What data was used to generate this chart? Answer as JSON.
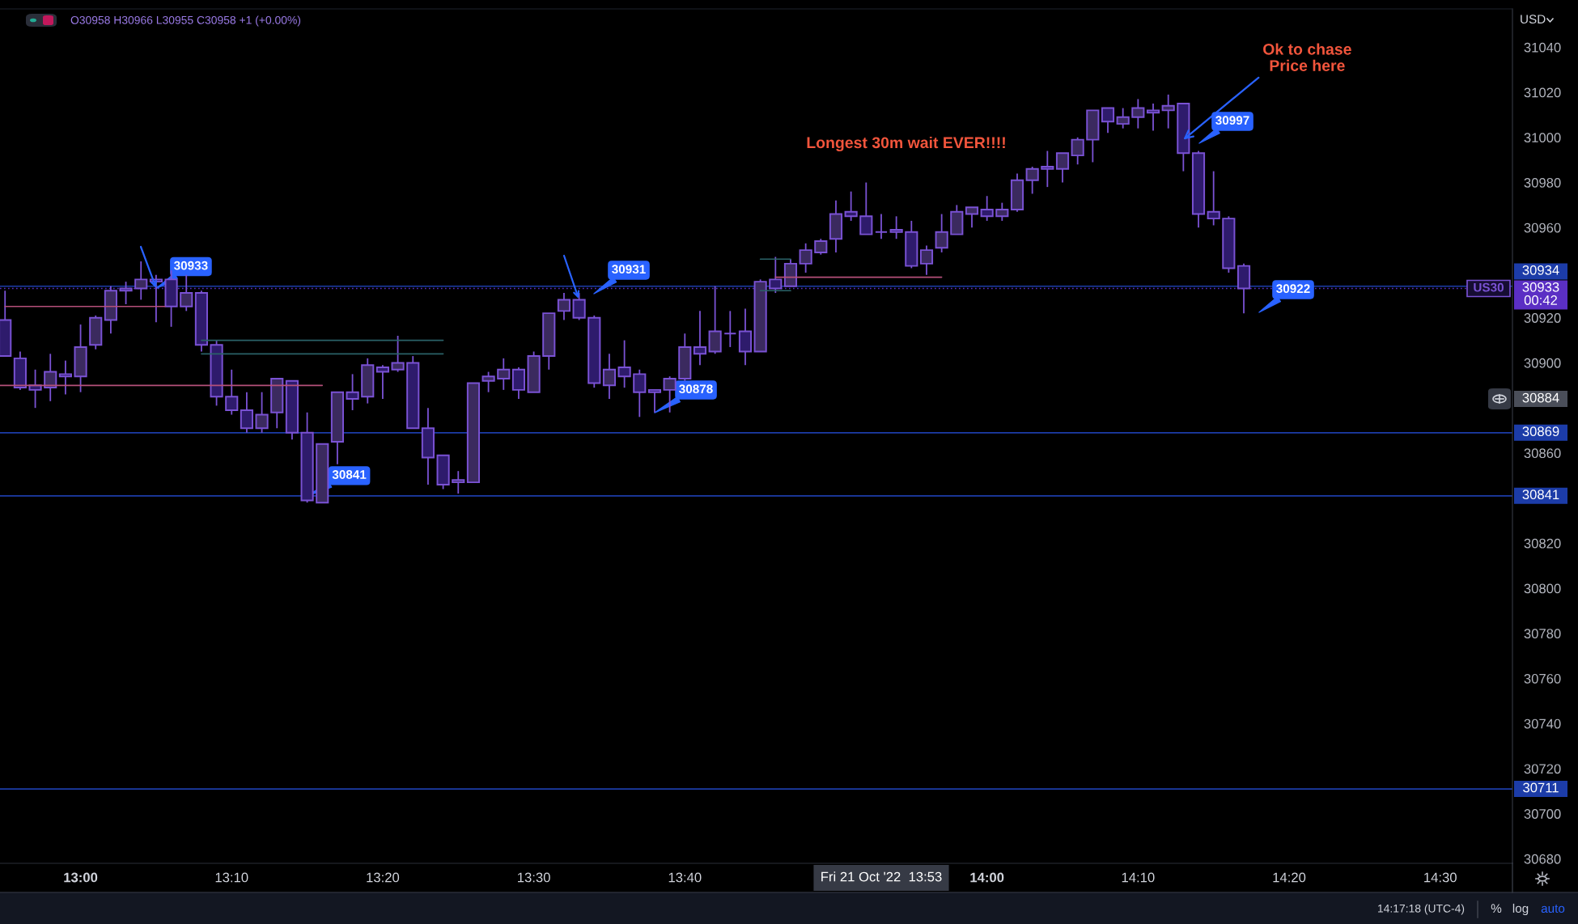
{
  "chart_data": {
    "type": "candlestick",
    "series": [
      {
        "name": "US30",
        "color": "#7a52d4",
        "x": [
          "2022-10-21T12:55",
          "2022-10-21T12:56",
          "2022-10-21T12:57",
          "2022-10-21T12:58",
          "2022-10-21T12:59",
          "2022-10-21T13:00",
          "2022-10-21T13:01",
          "2022-10-21T13:02",
          "2022-10-21T13:03",
          "2022-10-21T13:04",
          "2022-10-21T13:05",
          "2022-10-21T13:06",
          "2022-10-21T13:07",
          "2022-10-21T13:08",
          "2022-10-21T13:09",
          "2022-10-21T13:10",
          "2022-10-21T13:11",
          "2022-10-21T13:12",
          "2022-10-21T13:13",
          "2022-10-21T13:14",
          "2022-10-21T13:15",
          "2022-10-21T13:16",
          "2022-10-21T13:17",
          "2022-10-21T13:18",
          "2022-10-21T13:19",
          "2022-10-21T13:20",
          "2022-10-21T13:21",
          "2022-10-21T13:22",
          "2022-10-21T13:23",
          "2022-10-21T13:24",
          "2022-10-21T13:25",
          "2022-10-21T13:26",
          "2022-10-21T13:27",
          "2022-10-21T13:28",
          "2022-10-21T13:29",
          "2022-10-21T13:30",
          "2022-10-21T13:31",
          "2022-10-21T13:32",
          "2022-10-21T13:33",
          "2022-10-21T13:34",
          "2022-10-21T13:35",
          "2022-10-21T13:36",
          "2022-10-21T13:37",
          "2022-10-21T13:38",
          "2022-10-21T13:39",
          "2022-10-21T13:40",
          "2022-10-21T13:41",
          "2022-10-21T13:42",
          "2022-10-21T13:43",
          "2022-10-21T13:44",
          "2022-10-21T13:45",
          "2022-10-21T13:46",
          "2022-10-21T13:47",
          "2022-10-21T13:48",
          "2022-10-21T13:49",
          "2022-10-21T13:50",
          "2022-10-21T13:51",
          "2022-10-21T13:52",
          "2022-10-21T13:53",
          "2022-10-21T13:54",
          "2022-10-21T13:55",
          "2022-10-21T13:56",
          "2022-10-21T13:57",
          "2022-10-21T13:58",
          "2022-10-21T13:59",
          "2022-10-21T14:00",
          "2022-10-21T14:01",
          "2022-10-21T14:02",
          "2022-10-21T14:03",
          "2022-10-21T14:04",
          "2022-10-21T14:05",
          "2022-10-21T14:06",
          "2022-10-21T14:07",
          "2022-10-21T14:08",
          "2022-10-21T14:09",
          "2022-10-21T14:10",
          "2022-10-21T14:11",
          "2022-10-21T14:12",
          "2022-10-21T14:13",
          "2022-10-21T14:14",
          "2022-10-21T14:15",
          "2022-10-21T14:16",
          "2022-10-21T14:17"
        ],
        "ohlc": [
          [
            30919,
            30932,
            30903,
            30903
          ],
          [
            30902,
            30905,
            30888,
            30889
          ],
          [
            30890,
            30897,
            30880,
            30888
          ],
          [
            30889,
            30904,
            30883,
            30896
          ],
          [
            30895,
            30901,
            30886,
            30894
          ],
          [
            30894,
            30917,
            30887,
            30907
          ],
          [
            30908,
            30921,
            30906,
            30920
          ],
          [
            30919,
            30934,
            30913,
            30932
          ],
          [
            30933,
            30936,
            30926,
            30932
          ],
          [
            30933,
            30945,
            30928,
            30937
          ],
          [
            30937,
            30939,
            30918,
            30936
          ],
          [
            30937,
            30941,
            30916,
            30925
          ],
          [
            30925,
            30939,
            30923,
            30931
          ],
          [
            30931,
            30932,
            30905,
            30908
          ],
          [
            30908,
            30910,
            30881,
            30885
          ],
          [
            30885,
            30897,
            30877,
            30879
          ],
          [
            30879,
            30887,
            30869,
            30871
          ],
          [
            30871,
            30887,
            30869,
            30877
          ],
          [
            30878,
            30893,
            30871,
            30893
          ],
          [
            30892,
            30892,
            30866,
            30869
          ],
          [
            30869,
            30878,
            30838,
            30839
          ],
          [
            30838,
            30864,
            30838,
            30864
          ],
          [
            30865,
            30887,
            30855,
            30887
          ],
          [
            30887,
            30895,
            30879,
            30884
          ],
          [
            30885,
            30902,
            30882,
            30899
          ],
          [
            30898,
            30899,
            30884,
            30896
          ],
          [
            30897,
            30912,
            30896,
            30900
          ],
          [
            30900,
            30903,
            30871,
            30871
          ],
          [
            30871,
            30880,
            30846,
            30858
          ],
          [
            30859,
            30859,
            30844,
            30846
          ],
          [
            30847,
            30852,
            30842,
            30848
          ],
          [
            30847,
            30891,
            30847,
            30891
          ],
          [
            30892,
            30896,
            30887,
            30894
          ],
          [
            30893,
            30902,
            30888,
            30897
          ],
          [
            30897,
            30898,
            30884,
            30888
          ],
          [
            30887,
            30905,
            30887,
            30903
          ],
          [
            30903,
            30922,
            30897,
            30922
          ],
          [
            30923,
            30931,
            30919,
            30928
          ],
          [
            30928,
            30931,
            30919,
            30920
          ],
          [
            30920,
            30921,
            30889,
            30891
          ],
          [
            30890,
            30904,
            30884,
            30897
          ],
          [
            30898,
            30910,
            30889,
            30894
          ],
          [
            30895,
            30897,
            30876,
            30887
          ],
          [
            30888,
            30888,
            30878,
            30887
          ],
          [
            30888,
            30894,
            30878,
            30893
          ],
          [
            30893,
            30913,
            30892,
            30907
          ],
          [
            30907,
            30923,
            30899,
            30904
          ],
          [
            30905,
            30934,
            30904,
            30914
          ],
          [
            30913,
            30923,
            30907,
            30913
          ],
          [
            30914,
            30924,
            30899,
            30905
          ],
          [
            30905,
            30937,
            30905,
            30936
          ],
          [
            30937,
            30947,
            30931,
            30933
          ],
          [
            30934,
            30946,
            30934,
            30944
          ],
          [
            30944,
            30953,
            30940,
            30950
          ],
          [
            30949,
            30955,
            30948,
            30954
          ],
          [
            30955,
            30972,
            30949,
            30966
          ],
          [
            30967,
            30976,
            30963,
            30965
          ],
          [
            30965,
            30980,
            30957,
            30957
          ],
          [
            30958,
            30966,
            30955,
            30958
          ],
          [
            30959,
            30965,
            30955,
            30958
          ],
          [
            30958,
            30963,
            30942,
            30943
          ],
          [
            30944,
            30952,
            30939,
            30950
          ],
          [
            30951,
            30966,
            30949,
            30958
          ],
          [
            30957,
            30970,
            30957,
            30967
          ],
          [
            30966,
            30969,
            30960,
            30969
          ],
          [
            30968,
            30974,
            30963,
            30965
          ],
          [
            30965,
            30971,
            30963,
            30968
          ],
          [
            30968,
            30984,
            30967,
            30981
          ],
          [
            30981,
            30987,
            30975,
            30986
          ],
          [
            30987,
            30994,
            30978,
            30986
          ],
          [
            30986,
            30993,
            30980,
            30993
          ],
          [
            30992,
            31000,
            30988,
            30999
          ],
          [
            30999,
            31012,
            30989,
            31012
          ],
          [
            31013,
            31013,
            31002,
            31007
          ],
          [
            31006,
            31013,
            31004,
            31009
          ],
          [
            31009,
            31017,
            31004,
            31013
          ],
          [
            31012,
            31015,
            31003,
            31011
          ],
          [
            31012,
            31019,
            31004,
            31014
          ],
          [
            31015,
            31015,
            30985,
            30993
          ],
          [
            30993,
            30994,
            30960,
            30966
          ],
          [
            30967,
            30985,
            30961,
            30964
          ],
          [
            30964,
            30965,
            30940,
            30942
          ],
          [
            30943,
            30944,
            30922,
            30933
          ]
        ],
        "colors": [
          "#2e1b6c",
          "#2e1b6c",
          "#2e1b6c",
          "#3b2a5f",
          "#2e1b6c",
          "#3b2a5f",
          "#3b2a5f",
          "#3b2a5f",
          "#2e1b6c",
          "#3b2a5f",
          "#2e1b6c",
          "#2e1b6c",
          "#3b2a5f",
          "#2e1b6c",
          "#2e1b6c",
          "#2e1b6c",
          "#2e1b6c",
          "#3b2a5f",
          "#3b2a5f",
          "#2e1b6c",
          "#2e1b6c",
          "#3b2a5f",
          "#3b2a5f",
          "#2e1b6c",
          "#3b2a5f",
          "#2e1b6c",
          "#3b2a5f",
          "#2e1b6c",
          "#2e1b6c",
          "#2e1b6c",
          "#3b2a5f",
          "#3b2a5f",
          "#3b2a5f",
          "#3b2a5f",
          "#2e1b6c",
          "#3b2a5f",
          "#3b2a5f",
          "#3b2a5f",
          "#2e1b6c",
          "#2e1b6c",
          "#3b2a5f",
          "#2e1b6c",
          "#2e1b6c",
          "#2e1b6c",
          "#3b2a5f",
          "#3b2a5f",
          "#2e1b6c",
          "#3b2a5f",
          "#7a52d4",
          "#2e1b6c",
          "#3b2a5f",
          "#2e1b6c",
          "#3b2a5f",
          "#3b2a5f",
          "#3b2a5f",
          "#3b2a5f",
          "#2e1b6c",
          "#2e1b6c",
          "#7a52d4",
          "#2e1b6c",
          "#2e1b6c",
          "#3b2a5f",
          "#3b2a5f",
          "#3b2a5f",
          "#3b2a5f",
          "#2e1b6c",
          "#3b2a5f",
          "#3b2a5f",
          "#3b2a5f",
          "#2e1b6c",
          "#3b2a5f",
          "#3b2a5f",
          "#3b2a5f",
          "#2e1b6c",
          "#3b2a5f",
          "#3b2a5f",
          "#2e1b6c",
          "#3b2a5f",
          "#2e1b6c",
          "#2e1b6c",
          "#2e1b6c",
          "#2e1b6c",
          "#2e1b6c"
        ]
      },
      {
        "type": "line",
        "color": "#b5507a",
        "x": [
          "2022-10-21T12:55",
          "2022-10-21T13:05:35"
        ],
        "values": [
          30925,
          30925
        ]
      },
      {
        "type": "line",
        "color": "#b5507a",
        "x": [
          "2022-10-21T12:54:40",
          "2022-10-21T13:16"
        ],
        "values": [
          30890,
          30890
        ]
      },
      {
        "type": "line",
        "color": "#b5507a",
        "x": [
          "2022-10-21T13:46",
          "2022-10-21T13:57"
        ],
        "values": [
          30938,
          30938
        ]
      },
      {
        "type": "line",
        "color": "#2a6268",
        "x": [
          "2022-10-21T13:08",
          "2022-10-21T13:24"
        ],
        "values": [
          30910,
          30910
        ]
      },
      {
        "type": "line",
        "color": "#2a6268",
        "x": [
          "2022-10-21T13:08",
          "2022-10-21T13:24"
        ],
        "values": [
          30904,
          30904
        ]
      },
      {
        "type": "line",
        "color": "#2a6268",
        "x": [
          "2022-10-21T13:45",
          "2022-10-21T13:47"
        ],
        "values": [
          30946,
          30946
        ]
      },
      {
        "type": "line",
        "color": "#2a6268",
        "x": [
          "2022-10-21T13:45",
          "2022-10-21T13:47"
        ],
        "values": [
          30932,
          30932
        ]
      }
    ],
    "xlim": [
      "2022-10-21T12:54:40",
      "2022-10-21T14:34:47"
    ],
    "xticks": [
      {
        "value": "2022-10-21T13:00",
        "label": "13:00"
      },
      {
        "value": "2022-10-21T13:10",
        "label": "13:10"
      },
      {
        "value": "2022-10-21T13:20",
        "label": "13:20"
      },
      {
        "value": "2022-10-21T13:30",
        "label": "13:30"
      },
      {
        "value": "2022-10-21T13:40",
        "label": "13:40"
      },
      {
        "value": "2022-10-21T14:00",
        "label": "14:00"
      },
      {
        "value": "2022-10-21T14:10",
        "label": "14:10"
      },
      {
        "value": "2022-10-21T14:20",
        "label": "14:20"
      },
      {
        "value": "2022-10-21T14:30",
        "label": "14:30"
      }
    ],
    "ylim": [
      30678,
      31057
    ],
    "yticks": [
      30680,
      30700,
      30720,
      30740,
      30760,
      30780,
      30800,
      30820,
      30860,
      30900,
      30920,
      30960,
      30980,
      31000,
      31020,
      31040
    ],
    "ref_lines": [
      {
        "axis": "y",
        "value": 30934,
        "label": "30934",
        "color": "#1c3ca8"
      },
      {
        "axis": "y",
        "value": 30933,
        "label": "30933\n00:42",
        "color": "#5b2fc4",
        "line_style": "dotted"
      },
      {
        "axis": "y",
        "value": 30869,
        "label": "30869",
        "color": "#1c3ca8"
      },
      {
        "axis": "y",
        "value": 30841,
        "label": "30841",
        "color": "#1c3ca8"
      },
      {
        "axis": "y",
        "value": 30711,
        "label": "30711",
        "color": "#1c3ca8"
      }
    ],
    "annotations": [
      {
        "text": "30933",
        "x": "2022-10-21T13:05",
        "y": 30933
      },
      {
        "text": "30841",
        "x": "2022-10-21T13:15",
        "y": 30841
      },
      {
        "text": "Ok to chase\nPrice here",
        "x": "2022-10-21T14:13",
        "y": 30999
      },
      "30931",
      "30878",
      "30922",
      "30997",
      "Longest 30m wait EVER!!!!",
      "O30958 H30966 L30955 C30958 +1 (+0.00%)",
      "USD",
      "14:17:18 (UTC-4)",
      "%",
      "log",
      "auto",
      "Fri 21 Oct '22  13:53",
      "30884"
    ]
  }
}
